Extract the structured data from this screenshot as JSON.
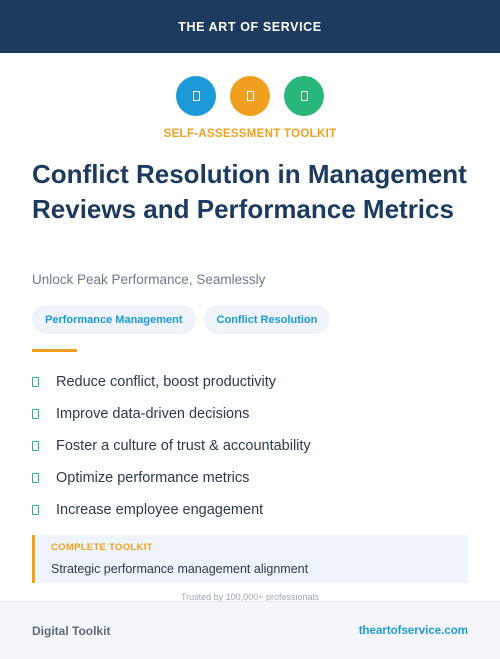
{
  "header": {
    "brand": "THE ART OF SERVICE"
  },
  "icons": [
    {
      "name": "document-icon",
      "color": "#1b9ad7"
    },
    {
      "name": "document-icon",
      "color": "#f0a01e"
    },
    {
      "name": "document-icon",
      "color": "#27b57a"
    }
  ],
  "kicker": "SELF-ASSESSMENT TOOLKIT",
  "title": "Conflict Resolution in Management Reviews and Performance Metrics",
  "subtitle": "Unlock Peak Performance, Seamlessly",
  "tags": [
    "Performance Management",
    "Conflict Resolution"
  ],
  "benefits": [
    "Reduce conflict, boost productivity",
    "Improve data-driven decisions",
    "Foster a culture of trust & accountability",
    "Optimize performance metrics",
    "Increase employee engagement"
  ],
  "callout": {
    "label": "COMPLETE TOOLKIT",
    "text": "Strategic performance management alignment"
  },
  "trusted": "Trusted by 100,000+ professionals",
  "footer": {
    "left": "Digital Toolkit",
    "right": "theartofservice.com"
  },
  "colors": {
    "navy": "#1d3a5f",
    "accent_orange": "#f0a01e",
    "accent_blue": "#1b9ad7",
    "accent_green": "#27b57a"
  }
}
